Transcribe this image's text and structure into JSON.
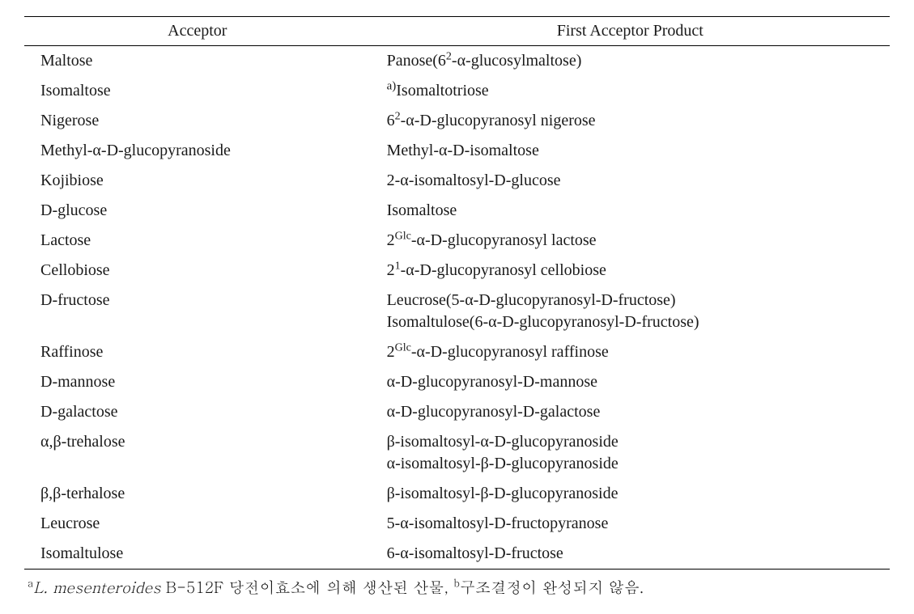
{
  "table": {
    "header": {
      "col1": "Acceptor",
      "col2": "First Acceptor Product"
    },
    "rows": [
      {
        "acceptor": "Maltose",
        "product_html": "Panose(6<sup>2</sup>-α-glucosylmaltose)"
      },
      {
        "acceptor": "Isomaltose",
        "product_html": "<span class=\"sup-pre\">a)</span>Isomaltotriose"
      },
      {
        "acceptor": "Nigerose",
        "product_html": "6<sup>2</sup>-α-D-glucopyranosyl nigerose"
      },
      {
        "acceptor": "Methyl-α-D-glucopyranoside",
        "product_html": "Methyl-α-D-isomaltose"
      },
      {
        "acceptor": "Kojibiose",
        "product_html": "2-α-isomaltosyl-D-glucose"
      },
      {
        "acceptor": "D-glucose",
        "product_html": "Isomaltose"
      },
      {
        "acceptor": "Lactose",
        "product_html": "2<sup>Glc</sup>-α-D-glucopyranosyl lactose"
      },
      {
        "acceptor": "Cellobiose",
        "product_html": "2<sup>1</sup>-α-D-glucopyranosyl cellobiose"
      },
      {
        "acceptor": "D-fructose",
        "product_html": "Leucrose(5-α-D-glucopyranosyl-D-fructose)<br>Isomaltulose(6-α-D-glucopyranosyl-D-fructose)"
      },
      {
        "acceptor": "Raffinose",
        "product_html": "2<sup>Glc</sup>-α-D-glucopyranosyl raffinose"
      },
      {
        "acceptor": "D-mannose",
        "product_html": "α-D-glucopyranosyl-D-mannose"
      },
      {
        "acceptor": "D-galactose",
        "product_html": "α-D-glucopyranosyl-D-galactose"
      },
      {
        "acceptor": "α,β-trehalose",
        "product_html": "β-isomaltosyl-α-D-glucopyranoside<br>α-isomaltosyl-β-D-glucopyranoside"
      },
      {
        "acceptor": "β,β-terhalose",
        "product_html": "β-isomaltosyl-β-D-glucopyranoside"
      },
      {
        "acceptor": "Leucrose",
        "product_html": "5-α-isomaltosyl-D-fructopyranose"
      },
      {
        "acceptor": "Isomaltulose",
        "product_html": "6-α-isomaltosyl-D-fructose"
      }
    ]
  },
  "footnote_html": "<sup>a</sup><span class=\"italic\">L. mesenteroides</span> B-512F 당전이효소에 의해 생산된 산물, <sup>b</sup>구조결정이 완성되지 않음."
}
